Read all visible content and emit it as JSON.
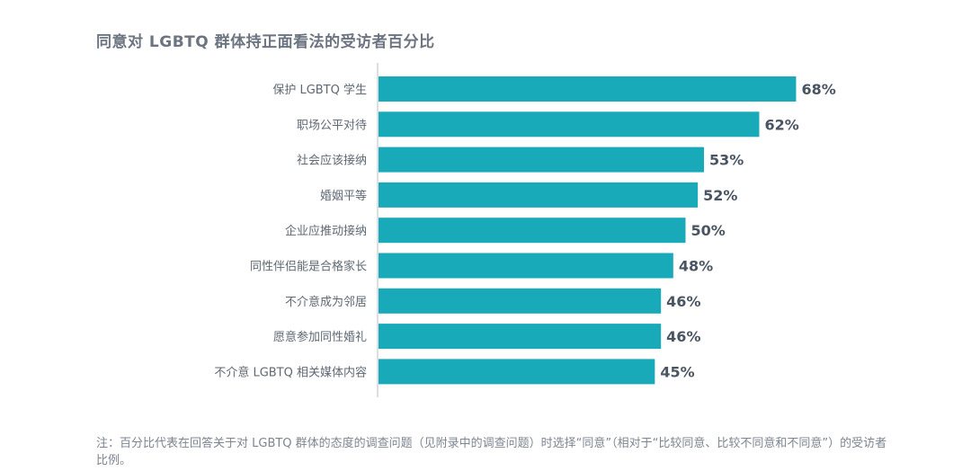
{
  "chart_data": {
    "type": "bar",
    "orientation": "horizontal",
    "title": "同意对 LGBTQ 群体持正面看法的受访者百分比",
    "categories": [
      "保护 LGBTQ 学生",
      "职场公平对待",
      "社会应该接纳",
      "婚姻平等",
      "企业应推动接纳",
      "同性伴侣能是合格家长",
      "不介意成为邻居",
      "愿意参加同性婚礼",
      "不介意 LGBTQ 相关媒体内容"
    ],
    "values": [
      68,
      62,
      53,
      52,
      50,
      48,
      46,
      46,
      45
    ],
    "value_labels": [
      "68%",
      "62%",
      "53%",
      "52%",
      "50%",
      "48%",
      "46%",
      "46%",
      "45%"
    ],
    "unit": "%",
    "bar_color": "#19aab9",
    "grid": false,
    "legend": "none"
  },
  "footnote": "注：百分比代表在回答关于对 LGBTQ 群体的态度的调查问题（见附录中的调查问题）时选择“同意”（相对于“比较同意、比较不同意和不同意”）的受访者比例。"
}
